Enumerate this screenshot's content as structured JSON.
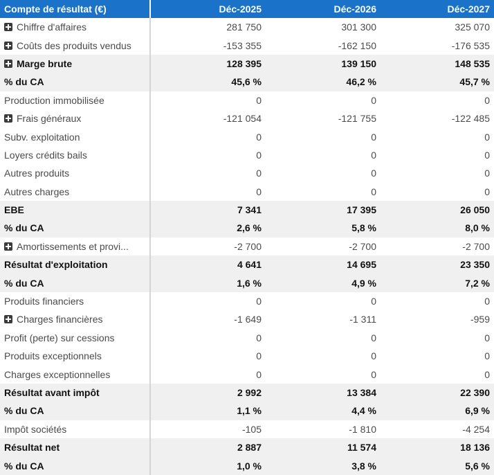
{
  "header": {
    "title": "Compte de résultat (€)",
    "years": [
      "Déc-2025",
      "Déc-2026",
      "Déc-2027"
    ]
  },
  "rows": [
    {
      "label": "Chiffre d'affaires",
      "expand": true,
      "bold": false,
      "values": [
        "281 750",
        "301 300",
        "325 070"
      ]
    },
    {
      "label": "Coûts des produits vendus",
      "expand": true,
      "bold": false,
      "values": [
        "-153 355",
        "-162 150",
        "-176 535"
      ]
    },
    {
      "label": "Marge brute",
      "expand": true,
      "bold": true,
      "values": [
        "128 395",
        "139 150",
        "148 535"
      ]
    },
    {
      "label": "% du CA",
      "expand": false,
      "bold": true,
      "values": [
        "45,6 %",
        "46,2 %",
        "45,7 %"
      ]
    },
    {
      "label": "Production immobilisée",
      "expand": false,
      "bold": false,
      "values": [
        "0",
        "0",
        "0"
      ]
    },
    {
      "label": "Frais généraux",
      "expand": true,
      "bold": false,
      "values": [
        "-121 054",
        "-121 755",
        "-122 485"
      ]
    },
    {
      "label": "Subv. exploitation",
      "expand": false,
      "bold": false,
      "values": [
        "0",
        "0",
        "0"
      ]
    },
    {
      "label": "Loyers crédits bails",
      "expand": false,
      "bold": false,
      "values": [
        "0",
        "0",
        "0"
      ]
    },
    {
      "label": "Autres produits",
      "expand": false,
      "bold": false,
      "values": [
        "0",
        "0",
        "0"
      ]
    },
    {
      "label": "Autres charges",
      "expand": false,
      "bold": false,
      "values": [
        "0",
        "0",
        "0"
      ]
    },
    {
      "label": "EBE",
      "expand": false,
      "bold": true,
      "values": [
        "7 341",
        "17 395",
        "26 050"
      ]
    },
    {
      "label": "% du CA",
      "expand": false,
      "bold": true,
      "values": [
        "2,6 %",
        "5,8 %",
        "8,0 %"
      ]
    },
    {
      "label": "Amortissements et provi...",
      "expand": true,
      "bold": false,
      "values": [
        "-2 700",
        "-2 700",
        "-2 700"
      ]
    },
    {
      "label": "Résultat d'exploitation",
      "expand": false,
      "bold": true,
      "values": [
        "4 641",
        "14 695",
        "23 350"
      ]
    },
    {
      "label": "% du CA",
      "expand": false,
      "bold": true,
      "values": [
        "1,6 %",
        "4,9 %",
        "7,2 %"
      ]
    },
    {
      "label": "Produits financiers",
      "expand": false,
      "bold": false,
      "values": [
        "0",
        "0",
        "0"
      ]
    },
    {
      "label": "Charges financières",
      "expand": true,
      "bold": false,
      "values": [
        "-1 649",
        "-1 311",
        "-959"
      ]
    },
    {
      "label": "Profit (perte) sur cessions",
      "expand": false,
      "bold": false,
      "values": [
        "0",
        "0",
        "0"
      ]
    },
    {
      "label": "Produits exceptionnels",
      "expand": false,
      "bold": false,
      "values": [
        "0",
        "0",
        "0"
      ]
    },
    {
      "label": "Charges exceptionnelles",
      "expand": false,
      "bold": false,
      "values": [
        "0",
        "0",
        "0"
      ]
    },
    {
      "label": "Résultat avant impôt",
      "expand": false,
      "bold": true,
      "values": [
        "2 992",
        "13 384",
        "22 390"
      ]
    },
    {
      "label": "% du CA",
      "expand": false,
      "bold": true,
      "values": [
        "1,1 %",
        "4,4 %",
        "6,9 %"
      ]
    },
    {
      "label": "Impôt sociétés",
      "expand": false,
      "bold": false,
      "values": [
        "-105",
        "-1 810",
        "-4 254"
      ]
    },
    {
      "label": "Résultat net",
      "expand": false,
      "bold": true,
      "values": [
        "2 887",
        "11 574",
        "18 136"
      ]
    },
    {
      "label": "% du CA",
      "expand": false,
      "bold": true,
      "values": [
        "1,0 %",
        "3,8 %",
        "5,6 %"
      ]
    }
  ]
}
